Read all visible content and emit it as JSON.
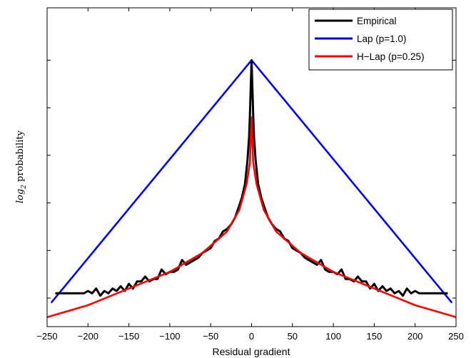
{
  "chart_data": {
    "type": "line",
    "title": "",
    "xlabel": "Residual gradient",
    "ylabel": "log2 probability",
    "xlim": [
      -250,
      250
    ],
    "ylim": [
      -11.2,
      2.2
    ],
    "x_ticks": [
      -250,
      -200,
      -150,
      -100,
      -50,
      0,
      50,
      100,
      150,
      200,
      250
    ],
    "y_ticks": [
      -10,
      -8,
      -6,
      -4,
      -2,
      0
    ],
    "y_tick_labels_shown": false,
    "grid": false,
    "legend_position": "top-right",
    "series": [
      {
        "name": "Empirical",
        "color": "#000000",
        "x": [
          0,
          1,
          2,
          3,
          5,
          8,
          12,
          16,
          20,
          25,
          30,
          35,
          40,
          45,
          50,
          55,
          60,
          65,
          70,
          75,
          80,
          85,
          90,
          95,
          100,
          105,
          110,
          115,
          120,
          125,
          130,
          135,
          140,
          145,
          150,
          155,
          160,
          165,
          170,
          175,
          180,
          185,
          190,
          195,
          200,
          205,
          210,
          215,
          220,
          225,
          230,
          235,
          240
        ],
        "y": [
          0,
          -1.1,
          -2.3,
          -3.2,
          -4.2,
          -5.2,
          -5.8,
          -6.2,
          -6.6,
          -6.9,
          -7.1,
          -7.2,
          -7.5,
          -7.6,
          -7.9,
          -8.0,
          -8.1,
          -8.3,
          -8.4,
          -8.5,
          -8.6,
          -8.4,
          -8.8,
          -8.9,
          -8.9,
          -9.0,
          -8.8,
          -9.2,
          -9.2,
          -9.3,
          -9.1,
          -9.3,
          -9.3,
          -9.6,
          -9.4,
          -9.7,
          -9.5,
          -9.7,
          -9.6,
          -9.8,
          -9.7,
          -9.9,
          -9.6,
          -9.8,
          -9.7,
          -9.8,
          -9.8,
          -9.8,
          -9.8,
          -9.8,
          -9.8,
          -9.8,
          -9.8
        ],
        "symmetric": true
      },
      {
        "name": "Lap (p=1.0)",
        "color": "#0000ff",
        "x": [
          -245,
          0,
          245
        ],
        "y": [
          -10.2,
          0,
          -10.2
        ]
      },
      {
        "name": "H−Lap (p=0.25)",
        "color": "#ff0000",
        "x": [
          -250,
          -200,
          -150,
          -100,
          -60,
          -30,
          -15,
          -6,
          -2,
          0,
          2,
          6,
          15,
          30,
          60,
          100,
          150,
          200,
          250
        ],
        "y": [
          -10.8,
          -10.3,
          -9.6,
          -8.9,
          -8.1,
          -7.2,
          -6.3,
          -5.2,
          -4.3,
          -2.4,
          -4.3,
          -5.2,
          -6.3,
          -7.2,
          -8.1,
          -8.9,
          -9.6,
          -10.3,
          -10.8
        ]
      }
    ]
  }
}
